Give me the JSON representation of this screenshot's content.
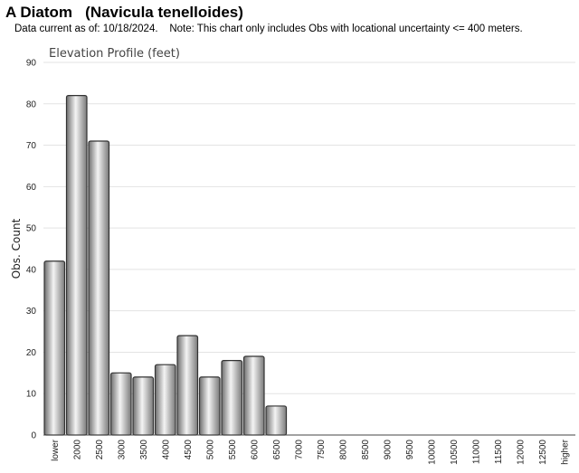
{
  "header": {
    "title": "A Diatom   (Navicula tenelloides)",
    "subtitle": "Data current as of: 10/18/2024.    Note: This chart only includes Obs with locational uncertainty <= 400 meters."
  },
  "chart_data": {
    "type": "bar",
    "title": "Elevation Profile (feet)",
    "ylabel": "Obs. Count",
    "xlabel": "",
    "ylim": [
      0,
      90
    ],
    "yticks": [
      0,
      10,
      20,
      30,
      40,
      50,
      60,
      70,
      80,
      90
    ],
    "grid": true,
    "categories": [
      "lower",
      "2000",
      "2500",
      "3000",
      "3500",
      "4000",
      "4500",
      "5000",
      "5500",
      "6000",
      "6500",
      "7000",
      "7500",
      "8000",
      "8500",
      "9000",
      "9500",
      "10000",
      "10500",
      "11000",
      "11500",
      "12000",
      "12500",
      "higher"
    ],
    "values": [
      42,
      82,
      71,
      15,
      14,
      17,
      24,
      14,
      18,
      19,
      7,
      0,
      0,
      0,
      0,
      0,
      0,
      0,
      0,
      0,
      0,
      0,
      0,
      0
    ],
    "colors": {
      "bar_light": "#f4f4f4",
      "bar_dark": "#6e6e6e",
      "bar_stroke": "#333333",
      "grid": "#e3e3e3",
      "axis": "#444444"
    }
  }
}
